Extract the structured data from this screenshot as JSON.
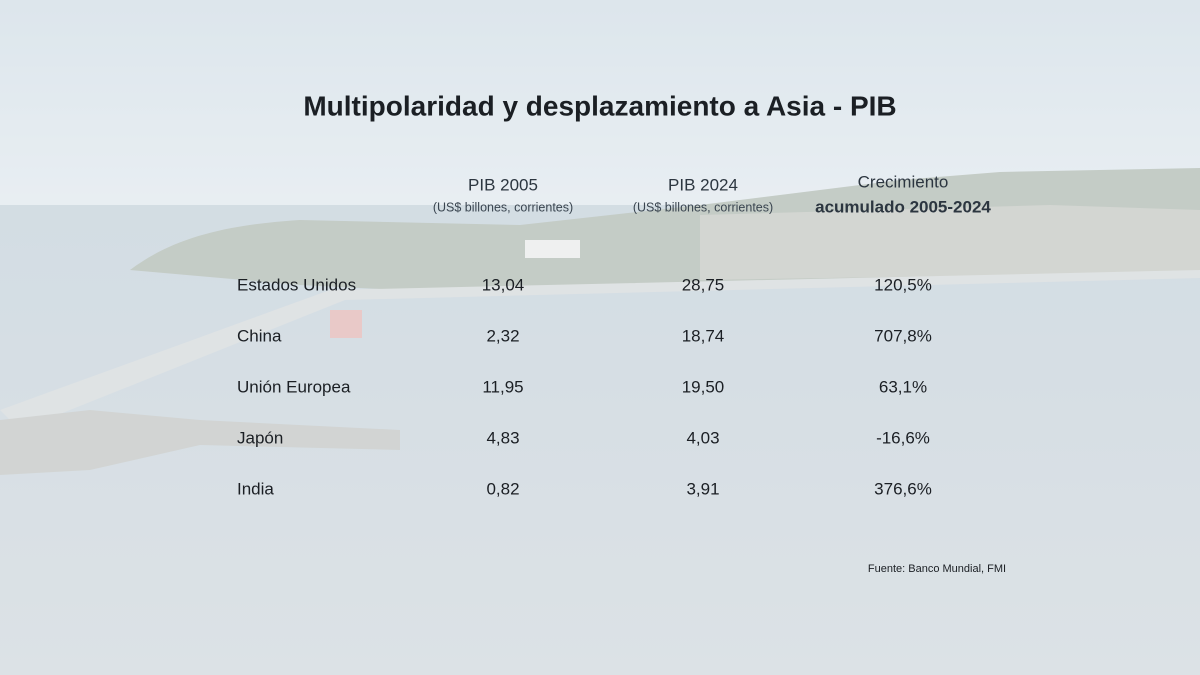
{
  "title": "Multipolaridad y desplazamiento a Asia - PIB",
  "table": {
    "columns": [
      {
        "title": "PIB 2005",
        "subtitle": "(US$ billones, corrientes)"
      },
      {
        "title": "PIB 2024",
        "subtitle": "(US$ billones, corrientes)"
      },
      {
        "title_lines": [
          "Crecimiento",
          "acumulado 2005-2024"
        ]
      }
    ],
    "rows": [
      [
        "Estados Unidos",
        "13,04",
        "28,75",
        "120,5%"
      ],
      [
        "China",
        "2,32",
        "18,74",
        "707,8%"
      ],
      [
        "Unión Europea",
        "11,95",
        "19,50",
        "63,1%"
      ],
      [
        "Japón",
        "4,83",
        "4,03",
        "-16,6%"
      ],
      [
        "India",
        "0,82",
        "3,91",
        "376,6%"
      ]
    ]
  },
  "source": "Fuente: Banco Mundial, FMI"
}
